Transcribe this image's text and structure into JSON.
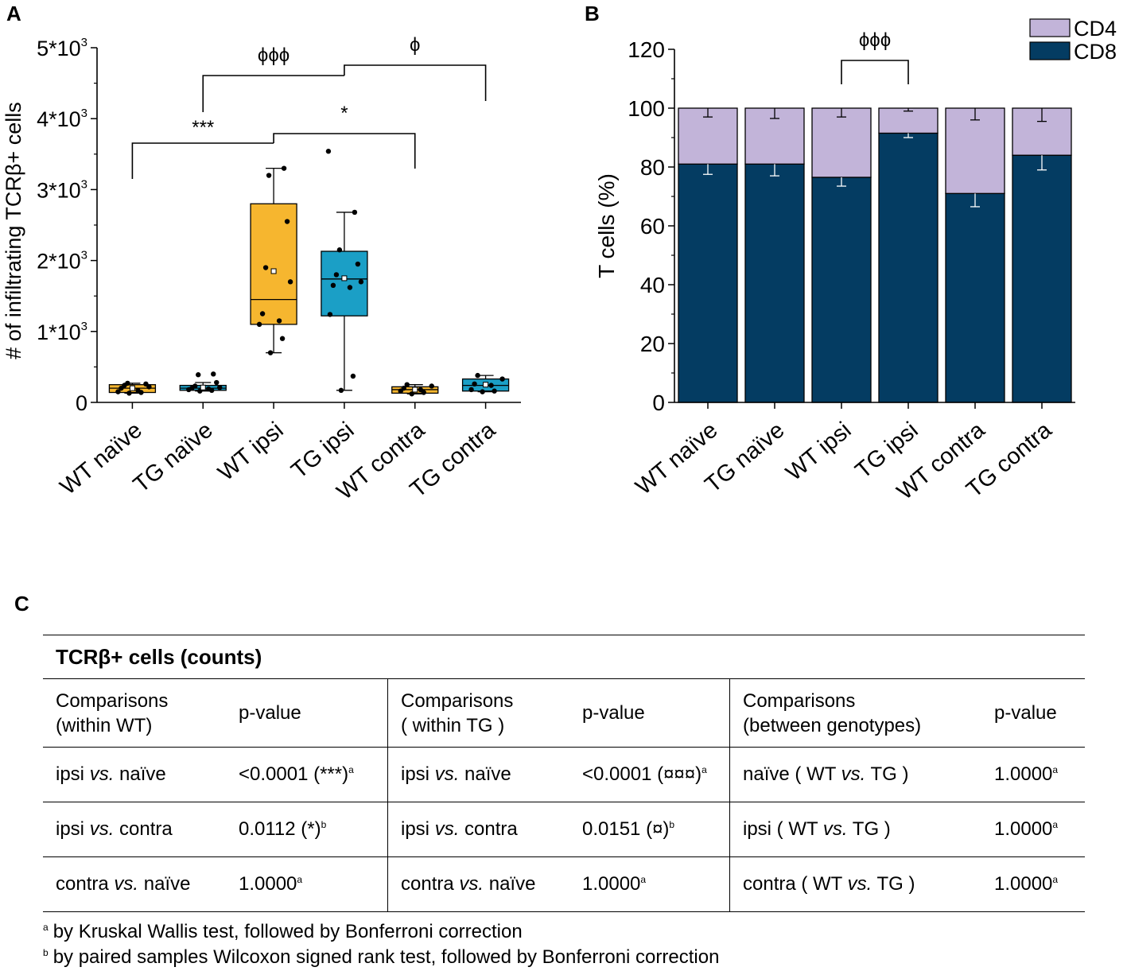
{
  "panelA": {
    "letter": "A",
    "y_label": "# of infiltrating TCRβ+ cells",
    "y_ticks": [
      "0",
      "1*10",
      "2*10",
      "3*10",
      "4*10",
      "5*10"
    ],
    "y_tick_exp": "3",
    "x_labels": [
      "WT naïve",
      "TG naïve",
      "WT ipsi",
      "TG ipsi",
      "WT contra",
      "TG contra"
    ],
    "sig": [
      {
        "label": "***",
        "from": 0,
        "to": 2
      },
      {
        "label": "*",
        "from": 2,
        "to": 4
      },
      {
        "label": "ϕϕϕ",
        "from": 1,
        "to": 3
      },
      {
        "label": "ϕ",
        "from": 3,
        "to": 5
      }
    ]
  },
  "panelB": {
    "letter": "B",
    "y_label": "T cells (%)",
    "y_ticks": [
      "0",
      "20",
      "40",
      "60",
      "80",
      "100",
      "120"
    ],
    "x_labels": [
      "WT naïve",
      "TG naïve",
      "WT ipsi",
      "TG ipsi",
      "WT contra",
      "TG contra"
    ],
    "legend": [
      "CD4",
      "CD8"
    ],
    "sig": [
      {
        "label": "ϕϕϕ",
        "from": 2,
        "to": 3
      }
    ]
  },
  "chart_data": [
    {
      "type": "box",
      "title": "",
      "xlabel": "",
      "ylabel": "# of infiltrating TCRβ+ cells",
      "ylim": [
        0,
        5000
      ],
      "categories": [
        "WT naïve",
        "TG naïve",
        "WT ipsi",
        "TG ipsi",
        "WT contra",
        "TG contra"
      ],
      "colors": [
        "#f6b62f",
        "#1b9fc6",
        "#f6b62f",
        "#1b9fc6",
        "#f6b62f",
        "#1b9fc6"
      ],
      "boxes": [
        {
          "whisker_low": 130,
          "q1": 140,
          "median": 200,
          "q3": 250,
          "whisker_high": 270,
          "mean": 200,
          "points": [
            130,
            140,
            150,
            170,
            200,
            220,
            240,
            260,
            270
          ]
        },
        {
          "whisker_low": 160,
          "q1": 170,
          "median": 200,
          "q3": 240,
          "whisker_high": 280,
          "mean": 210,
          "points": [
            160,
            170,
            180,
            190,
            200,
            210,
            230,
            280,
            390,
            400
          ]
        },
        {
          "whisker_low": 700,
          "q1": 1100,
          "median": 1450,
          "q3": 2800,
          "whisker_high": 3300,
          "mean": 1850,
          "points": [
            700,
            900,
            1100,
            1150,
            1250,
            1700,
            1900,
            2550,
            3200,
            3300
          ]
        },
        {
          "whisker_low": 170,
          "q1": 1220,
          "median": 1740,
          "q3": 2130,
          "whisker_high": 2680,
          "mean": 1750,
          "points": [
            170,
            370,
            1240,
            1620,
            1650,
            1700,
            1800,
            1950,
            2150,
            2680,
            3540
          ]
        },
        {
          "whisker_low": 120,
          "q1": 130,
          "median": 180,
          "q3": 220,
          "whisker_high": 250,
          "mean": 180,
          "points": [
            120,
            140,
            160,
            180,
            200,
            230,
            250
          ]
        },
        {
          "whisker_low": 150,
          "q1": 160,
          "median": 240,
          "q3": 330,
          "whisker_high": 380,
          "mean": 250,
          "points": [
            150,
            160,
            180,
            240,
            260,
            330,
            380
          ]
        }
      ]
    },
    {
      "type": "bar",
      "stacked": true,
      "title": "",
      "xlabel": "",
      "ylabel": "T cells (%)",
      "ylim": [
        0,
        120
      ],
      "categories": [
        "WT naïve",
        "TG naïve",
        "WT ipsi",
        "TG ipsi",
        "WT contra",
        "TG contra"
      ],
      "series": [
        {
          "name": "CD8",
          "color": "#043c62",
          "values": [
            81,
            81,
            76.5,
            91.5,
            71,
            84
          ],
          "error": [
            3.5,
            4,
            3,
            1.5,
            4.5,
            5
          ]
        },
        {
          "name": "CD4",
          "color": "#c2b4d9",
          "values": [
            19,
            19,
            23.5,
            8.5,
            29,
            16
          ],
          "error": [
            3,
            3.5,
            3,
            1,
            4,
            4.5
          ]
        }
      ]
    }
  ],
  "tableC": {
    "letter": "C",
    "title": "TCRβ+ cells (counts)",
    "groups": [
      {
        "header_comp_1": "Comparisons",
        "header_comp_2": "(within WT)",
        "header_p": "p-value",
        "rows": [
          {
            "a": "ipsi ",
            "vs": "vs.",
            "b": " naïve",
            "p": "<0.0001 (***)",
            "sup": "a"
          },
          {
            "a": "ipsi ",
            "vs": "vs.",
            "b": " contra",
            "p": "0.0112 (*)",
            "sup": "b"
          },
          {
            "a": "contra ",
            "vs": "vs.",
            "b": " naïve",
            "p": "1.0000",
            "sup": "a"
          }
        ]
      },
      {
        "header_comp_1": "Comparisons",
        "header_comp_2": "( within TG )",
        "header_p": "p-value",
        "rows": [
          {
            "a": "ipsi ",
            "vs": "vs.",
            "b": " naïve",
            "p": "<0.0001 (¤¤¤)",
            "sup": "a"
          },
          {
            "a": "ipsi ",
            "vs": "vs.",
            "b": " contra",
            "p": "0.0151 (¤)",
            "sup": "b"
          },
          {
            "a": "contra ",
            "vs": "vs.",
            "b": " naïve",
            "p": "1.0000",
            "sup": "a"
          }
        ]
      },
      {
        "header_comp_1": "Comparisons",
        "header_comp_2": "(between genotypes)",
        "header_p": "p-value",
        "rows": [
          {
            "a": "naïve ( WT ",
            "vs": "vs.",
            "b": " TG )",
            "p": "1.0000",
            "sup": "a"
          },
          {
            "a": "ipsi ( WT ",
            "vs": "vs.",
            "b": " TG )",
            "p": "1.0000",
            "sup": "a"
          },
          {
            "a": "contra ( WT ",
            "vs": "vs.",
            "b": " TG )",
            "p": "1.0000",
            "sup": "a"
          }
        ]
      }
    ],
    "footnotes": [
      {
        "mark": "a",
        "text": "by Kruskal Wallis test, followed by Bonferroni correction"
      },
      {
        "mark": "b",
        "text": "by paired samples Wilcoxon signed rank test, followed by Bonferroni correction"
      }
    ]
  }
}
